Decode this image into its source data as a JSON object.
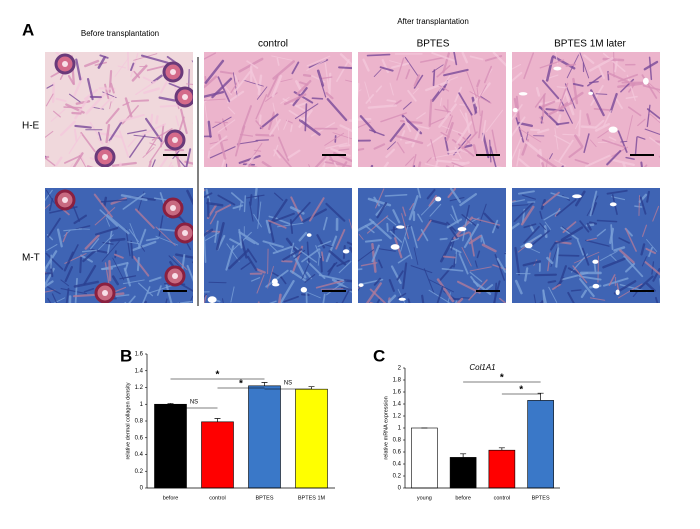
{
  "panel_a": {
    "label": "A",
    "before_title": "Before transplantation",
    "after_title": "After transplantation",
    "columns": [
      "control",
      "BPTES",
      "BPTES 1M later"
    ],
    "rows": [
      "H-E",
      "M-T"
    ]
  },
  "chart_data": [
    {
      "type": "bar",
      "panel_label": "B",
      "y_label": "relative dermal collagen density",
      "categories": [
        "before",
        "control",
        "BPTES",
        "BPTES 1M"
      ],
      "values": [
        1.0,
        0.79,
        1.22,
        1.18
      ],
      "errors": [
        0.01,
        0.04,
        0.04,
        0.03
      ],
      "colors": [
        "#000000",
        "#ff0000",
        "#3a78c8",
        "#ffff00"
      ],
      "ylim": [
        0,
        1.6
      ],
      "yticks": [
        0,
        0.2,
        0.4,
        0.6,
        0.8,
        1,
        1.2,
        1.4,
        1.6
      ],
      "annotations": [
        "NS",
        "*",
        "*",
        "NS"
      ]
    },
    {
      "type": "bar",
      "panel_label": "C",
      "title": "Col1A1",
      "y_label": "relative mRNA expression",
      "categories": [
        "young",
        "before",
        "control",
        "BPTES"
      ],
      "values": [
        1.0,
        0.51,
        0.63,
        1.46
      ],
      "errors": [
        0,
        0.06,
        0.04,
        0.12
      ],
      "colors": [
        "#ffffff",
        "#000000",
        "#ff0000",
        "#3a78c8"
      ],
      "ylim": [
        0,
        2
      ],
      "yticks": [
        0,
        0.2,
        0.4,
        0.6,
        0.8,
        1,
        1.2,
        1.4,
        1.6,
        1.8,
        2
      ],
      "annotations": [
        "*",
        "*"
      ]
    }
  ]
}
